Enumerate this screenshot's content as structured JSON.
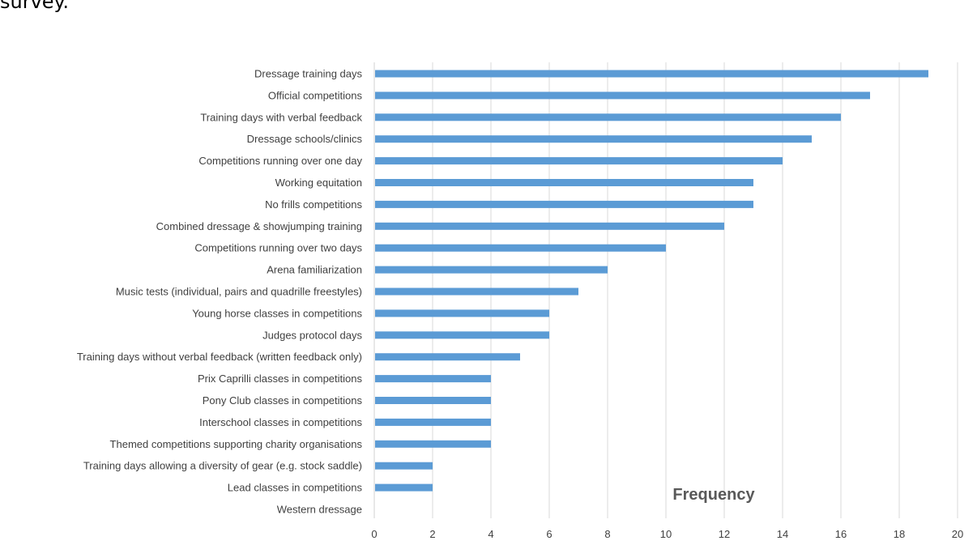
{
  "page": {
    "top_text": "survey."
  },
  "chart_data": {
    "type": "bar",
    "orientation": "horizontal",
    "categories": [
      "Dressage training days",
      "Official competitions",
      "Training days with verbal feedback",
      "Dressage schools/clinics",
      "Competitions running over one day",
      "Working equitation",
      "No frills competitions",
      "Combined dressage & showjumping training",
      "Competitions running over two days",
      "Arena familiarization",
      "Music tests (individual, pairs and quadrille freestyles)",
      "Young horse classes in competitions",
      "Judges protocol days",
      "Training days without verbal feedback (written feedback only)",
      "Prix Caprilli classes in competitions",
      "Pony Club classes in competitions",
      "Interschool classes in competitions",
      "Themed competitions supporting charity organisations",
      "Training days allowing a diversity of gear (e.g. stock saddle)",
      "Lead classes in competitions",
      "Western dressage"
    ],
    "values": [
      19,
      17,
      16,
      15,
      14,
      13,
      13,
      12,
      10,
      8,
      7,
      6,
      6,
      5,
      4,
      4,
      4,
      4,
      2,
      2,
      0
    ],
    "xlim": [
      0,
      20
    ],
    "xticks": [
      "0",
      "2",
      "4",
      "6",
      "8",
      "10",
      "12",
      "14",
      "16",
      "18",
      "20"
    ],
    "xlabel": "Frequency",
    "grid": true,
    "colors": {
      "bar": "#5b9bd5",
      "grid": "#d9d9d9",
      "text": "#3f3f3f",
      "axis_title": "#595959"
    }
  }
}
